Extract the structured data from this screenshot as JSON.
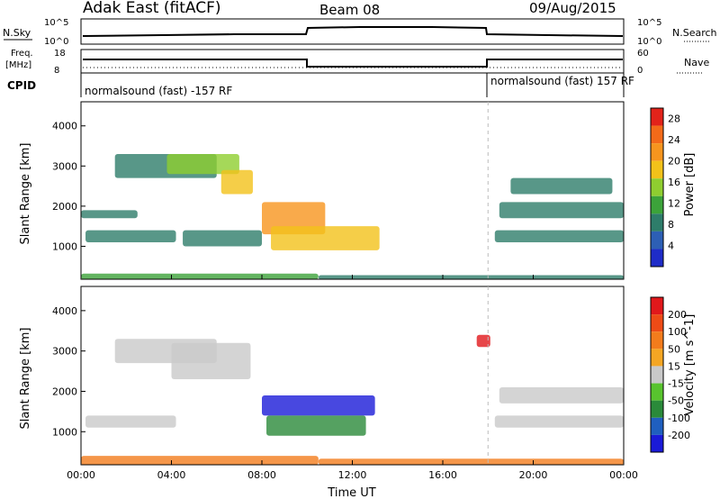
{
  "header": {
    "title": "Adak East (fitACF)",
    "beam": "Beam 08",
    "date": "09/Aug/2015"
  },
  "summary_panels": {
    "nsky_label": "N.Sky",
    "nsearch_label": "N.Search",
    "freq_label_1": "Freq.",
    "freq_label_2": "[MHz]",
    "nave_label": "Nave",
    "cpid_label": "CPID",
    "noise_ticks_left": [
      "10^5",
      "10^0"
    ],
    "noise_ticks_right": [
      "10^5",
      "10^0"
    ],
    "freq_ticks": [
      "18",
      "8"
    ],
    "nave_ticks": [
      "60",
      "0"
    ],
    "cpid_segments": [
      "normalsound (fast) -157 RF",
      "normalsound (fast) 157 RF"
    ]
  },
  "chart_data": [
    {
      "type": "heatmap",
      "title": "",
      "xlabel": "",
      "ylabel": "Slant Range [km]",
      "x_ticks": [
        "00:00",
        "04:00",
        "08:00",
        "12:00",
        "16:00",
        "20:00",
        "00:00"
      ],
      "xlim_hours": [
        0,
        24
      ],
      "y_ticks": [
        1000,
        2000,
        3000,
        4000
      ],
      "ylim": [
        180,
        4600
      ],
      "colorbar": {
        "label": "Power [dB]",
        "ticks": [
          4,
          8,
          12,
          16,
          20,
          24,
          28
        ],
        "range": [
          0,
          30
        ],
        "colors": [
          "#1e2cc8",
          "#2d5fb5",
          "#2e7d6a",
          "#3ca33a",
          "#8fce30",
          "#f2c21a",
          "#f7951e",
          "#f36a19",
          "#e2231a"
        ]
      },
      "regions": [
        {
          "t0": 0.0,
          "t1": 10.5,
          "r0": 180,
          "r1": 320,
          "level": 0.35
        },
        {
          "t0": 0.2,
          "t1": 4.2,
          "r0": 1100,
          "r1": 1400,
          "level": 0.2
        },
        {
          "t0": 0.0,
          "t1": 2.5,
          "r0": 1700,
          "r1": 1900,
          "level": 0.25
        },
        {
          "t0": 1.5,
          "t1": 6.0,
          "r0": 2700,
          "r1": 3300,
          "level": 0.2
        },
        {
          "t0": 3.8,
          "t1": 7.0,
          "r0": 2800,
          "r1": 3300,
          "level": 0.45
        },
        {
          "t0": 6.2,
          "t1": 7.6,
          "r0": 2300,
          "r1": 2900,
          "level": 0.65
        },
        {
          "t0": 8.0,
          "t1": 10.8,
          "r0": 1300,
          "r1": 2100,
          "level": 0.8
        },
        {
          "t0": 8.4,
          "t1": 13.2,
          "r0": 900,
          "r1": 1500,
          "level": 0.6
        },
        {
          "t0": 4.5,
          "t1": 8.0,
          "r0": 1000,
          "r1": 1400,
          "level": 0.25
        },
        {
          "t0": 18.3,
          "t1": 24.0,
          "r0": 1100,
          "r1": 1400,
          "level": 0.2
        },
        {
          "t0": 18.5,
          "t1": 24.0,
          "r0": 1700,
          "r1": 2100,
          "level": 0.22
        },
        {
          "t0": 19.0,
          "t1": 23.5,
          "r0": 2300,
          "r1": 2700,
          "level": 0.2
        },
        {
          "t0": 10.5,
          "t1": 24.0,
          "r0": 180,
          "r1": 280,
          "level": 0.3
        }
      ]
    },
    {
      "type": "heatmap",
      "title": "",
      "xlabel": "Time UT",
      "ylabel": "Slant Range [km]",
      "x_ticks": [
        "00:00",
        "04:00",
        "08:00",
        "12:00",
        "16:00",
        "20:00",
        "00:00"
      ],
      "xlim_hours": [
        0,
        24
      ],
      "y_ticks": [
        1000,
        2000,
        3000,
        4000
      ],
      "ylim": [
        180,
        4600
      ],
      "colorbar": {
        "label": "Velocity [m s^-1]",
        "ticks": [
          200,
          100,
          50,
          15,
          -15,
          -50,
          -100,
          -200
        ],
        "range": [
          -250,
          250
        ],
        "colors": [
          "#1a1ad8",
          "#1f5fbf",
          "#2a8a3a",
          "#58c42e",
          "#c9c9c9",
          "#f5a623",
          "#f37c1c",
          "#ee4b16",
          "#e1181b"
        ]
      },
      "regions": [
        {
          "t0": 0.0,
          "t1": 10.5,
          "r0": 180,
          "r1": 400,
          "level": 0.75
        },
        {
          "t0": 10.5,
          "t1": 24.0,
          "r0": 180,
          "r1": 330,
          "level": 0.8
        },
        {
          "t0": 0.2,
          "t1": 4.2,
          "r0": 1100,
          "r1": 1400,
          "level": 0.45
        },
        {
          "t0": 1.5,
          "t1": 6.0,
          "r0": 2700,
          "r1": 3300,
          "level": 0.45
        },
        {
          "t0": 4.0,
          "t1": 7.5,
          "r0": 2300,
          "r1": 3200,
          "level": 0.48
        },
        {
          "t0": 8.0,
          "t1": 13.0,
          "r0": 1400,
          "r1": 1900,
          "level": 0.02
        },
        {
          "t0": 8.2,
          "t1": 12.6,
          "r0": 900,
          "r1": 1400,
          "level": 0.3
        },
        {
          "t0": 18.3,
          "t1": 24.0,
          "r0": 1100,
          "r1": 1400,
          "level": 0.45
        },
        {
          "t0": 18.5,
          "t1": 24.0,
          "r0": 1700,
          "r1": 2100,
          "level": 0.45
        },
        {
          "t0": 17.5,
          "t1": 18.1,
          "r0": 3100,
          "r1": 3400,
          "level": 0.95
        }
      ]
    }
  ]
}
